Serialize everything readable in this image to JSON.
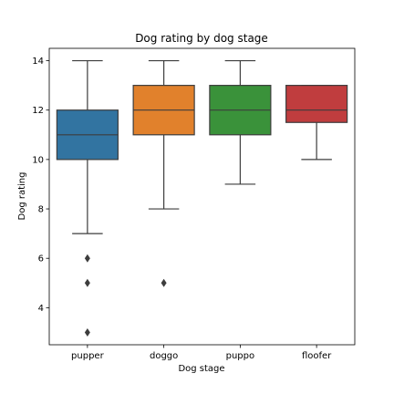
{
  "chart_data": {
    "type": "box",
    "title": "Dog rating by dog stage",
    "xlabel": "Dog stage",
    "ylabel": "Dog rating",
    "ylim": [
      2.5,
      14.5
    ],
    "yticks": [
      4,
      6,
      8,
      10,
      12,
      14
    ],
    "grid": false,
    "categories": [
      "pupper",
      "doggo",
      "puppo",
      "floofer"
    ],
    "colors": [
      "#3274a1",
      "#e1812c",
      "#3a923a",
      "#c03d3e"
    ],
    "boxes": [
      {
        "category": "pupper",
        "whisker_low": 7,
        "q1": 10,
        "median": 11,
        "q3": 12,
        "whisker_high": 14,
        "fliers": [
          6,
          5,
          3
        ]
      },
      {
        "category": "doggo",
        "whisker_low": 8,
        "q1": 11,
        "median": 12,
        "q3": 13,
        "whisker_high": 14,
        "fliers": [
          5
        ]
      },
      {
        "category": "puppo",
        "whisker_low": 9,
        "q1": 11,
        "median": 12,
        "q3": 13,
        "whisker_high": 14,
        "fliers": []
      },
      {
        "category": "floofer",
        "whisker_low": 10,
        "q1": 11.5,
        "median": 12,
        "q3": 13,
        "whisker_high": 13,
        "fliers": []
      }
    ]
  }
}
